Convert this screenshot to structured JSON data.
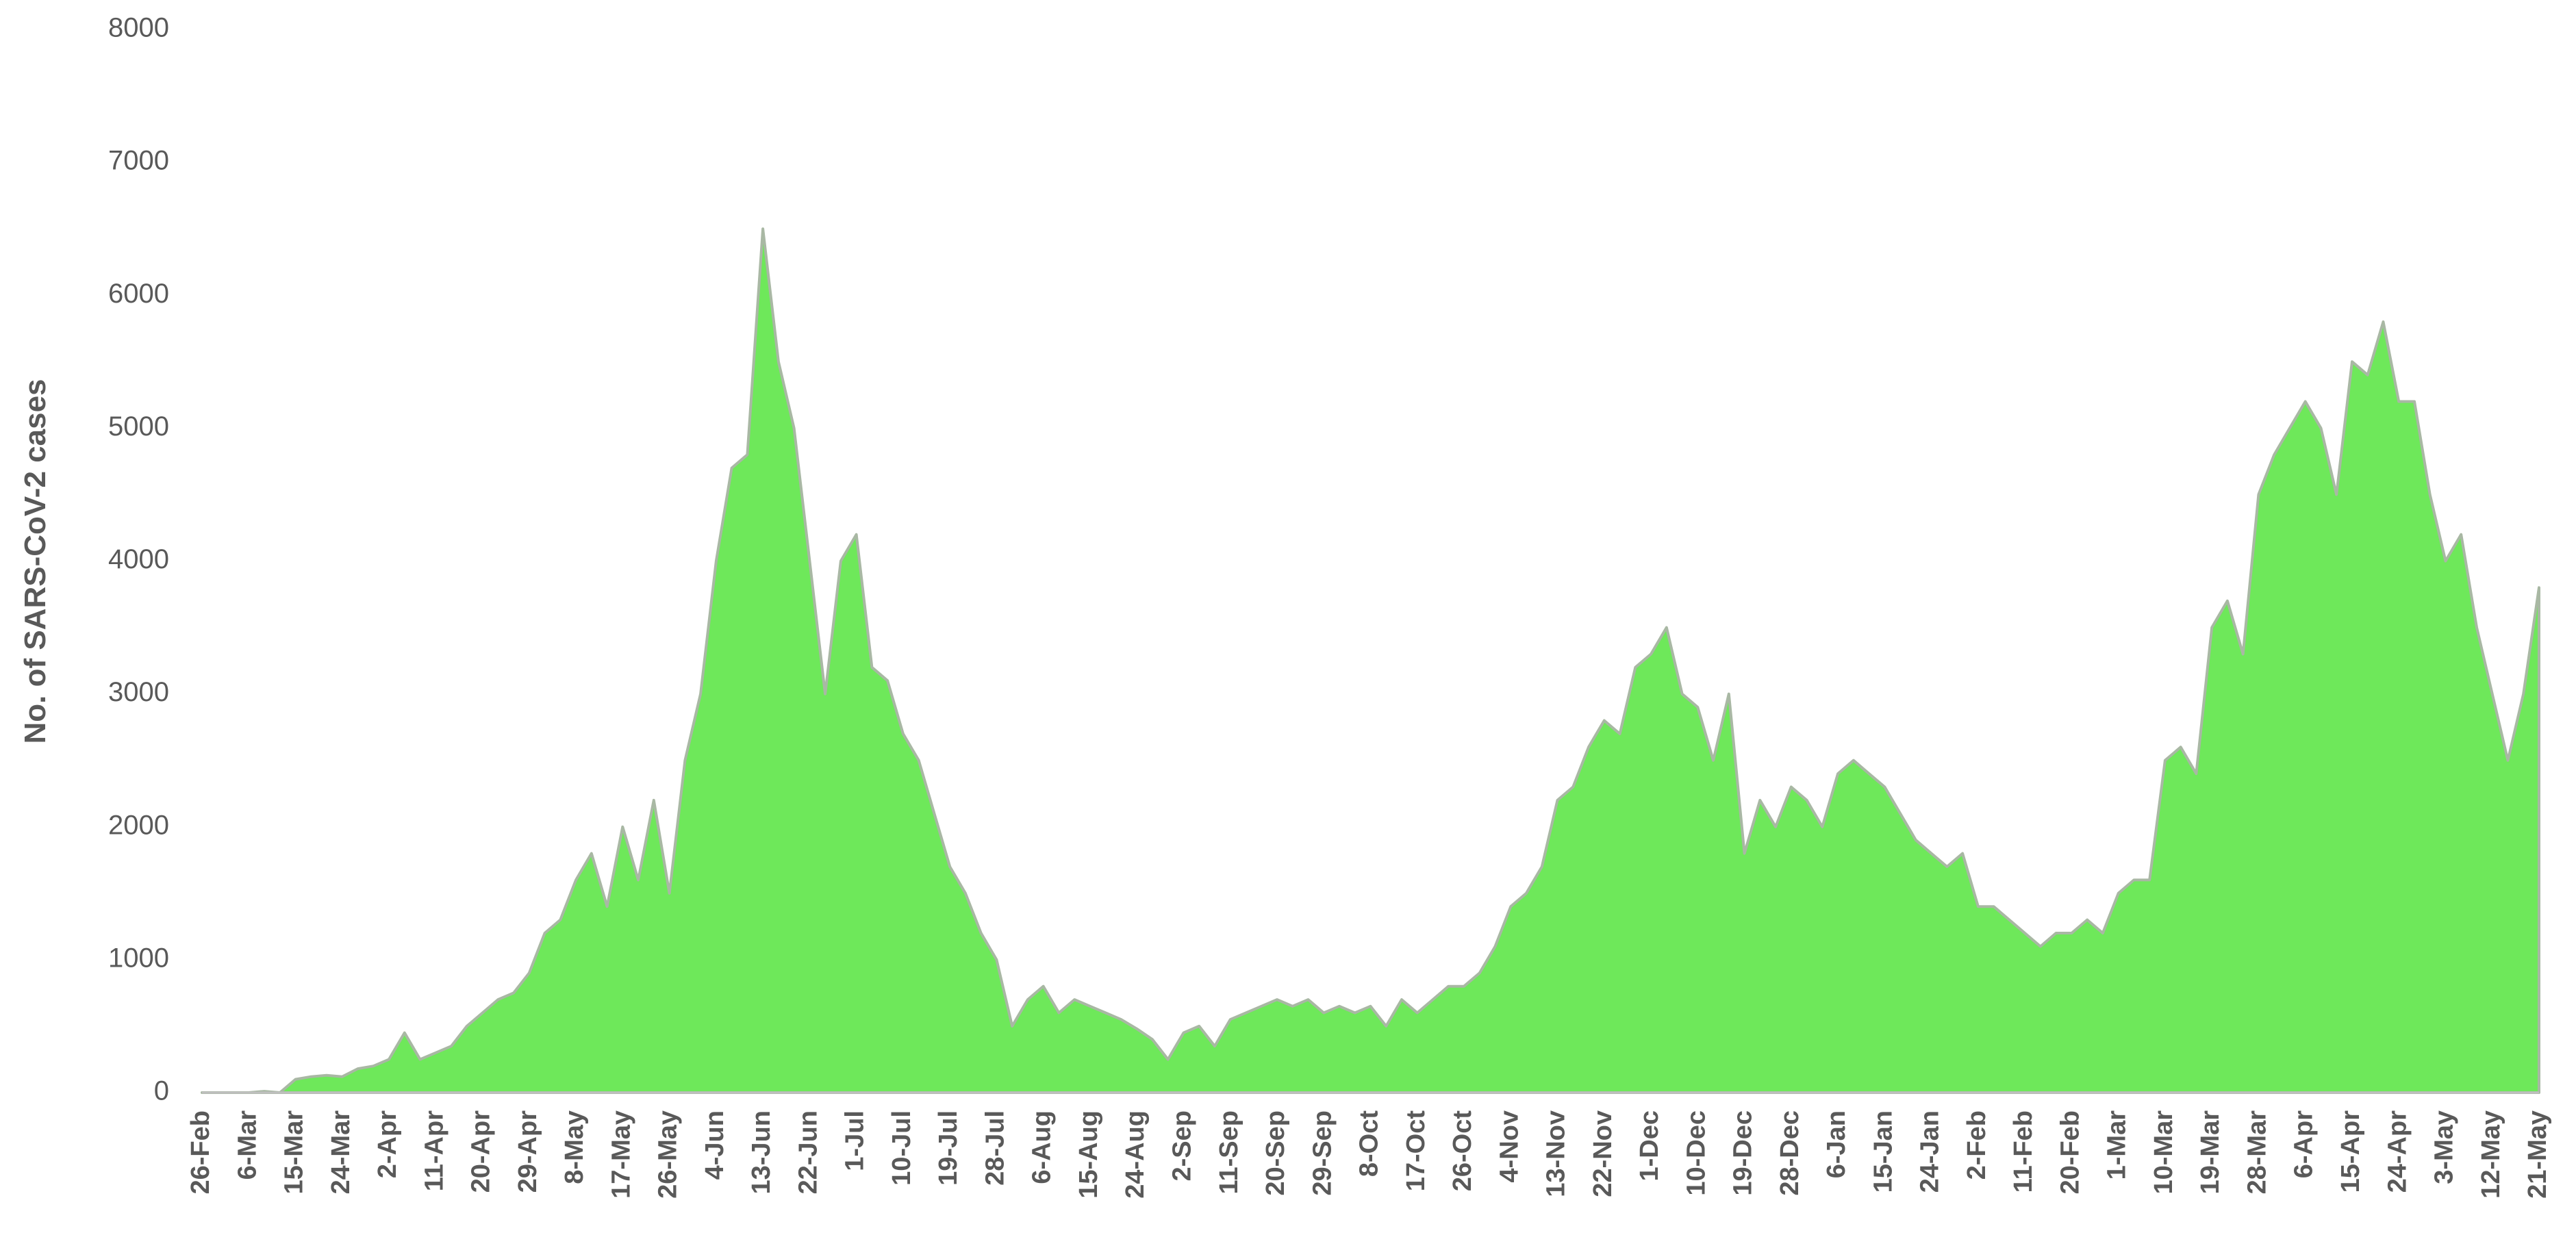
{
  "chart_data": {
    "type": "area",
    "y_label": "No. of SARS-CoV-2 cases",
    "categories": [
      "26-Feb",
      null,
      null,
      "6-Mar",
      null,
      null,
      "15-Mar",
      null,
      null,
      "24-Mar",
      null,
      null,
      "2-Apr",
      null,
      null,
      "11-Apr",
      null,
      null,
      "20-Apr",
      null,
      null,
      "29-Apr",
      null,
      null,
      "8-May",
      null,
      null,
      "17-May",
      null,
      null,
      "26-May",
      null,
      null,
      "4-Jun",
      null,
      null,
      "13-Jun",
      null,
      null,
      "22-Jun",
      null,
      null,
      "1-Jul",
      null,
      null,
      "10-Jul",
      null,
      null,
      "19-Jul",
      null,
      null,
      "28-Jul",
      null,
      null,
      "6-Aug",
      null,
      null,
      "15-Aug",
      null,
      null,
      "24-Aug",
      null,
      null,
      "2-Sep",
      null,
      null,
      "11-Sep",
      null,
      null,
      "20-Sep",
      null,
      null,
      "29-Sep",
      null,
      null,
      "8-Oct",
      null,
      null,
      "17-Oct",
      null,
      null,
      "26-Oct",
      null,
      null,
      "4-Nov",
      null,
      null,
      "13-Nov",
      null,
      null,
      "22-Nov",
      null,
      null,
      "1-Dec",
      null,
      null,
      "10-Dec",
      null,
      null,
      "19-Dec",
      null,
      null,
      "28-Dec",
      null,
      null,
      "6-Jan",
      null,
      null,
      "15-Jan",
      null,
      null,
      "24-Jan",
      null,
      null,
      "2-Feb",
      null,
      null,
      "11-Feb",
      null,
      null,
      "20-Feb",
      null,
      null,
      "1-Mar",
      null,
      null,
      "10-Mar",
      null,
      null,
      "19-Mar",
      null,
      null,
      "28-Mar",
      null,
      null,
      "6-Apr",
      null,
      null,
      "15-Apr",
      null,
      null,
      "24-Apr",
      null,
      null,
      "3-May",
      null,
      null,
      "12-May",
      null,
      null,
      "21-May"
    ],
    "values": [
      0,
      0,
      0,
      0,
      10,
      0,
      100,
      120,
      130,
      120,
      180,
      200,
      250,
      450,
      250,
      300,
      350,
      500,
      600,
      700,
      750,
      900,
      1200,
      1300,
      1600,
      1800,
      1400,
      2000,
      1600,
      2200,
      1500,
      2500,
      3000,
      4000,
      4700,
      4800,
      6500,
      5500,
      5000,
      4000,
      3000,
      4000,
      4200,
      3200,
      3100,
      2700,
      2500,
      2100,
      1700,
      1500,
      1200,
      1000,
      500,
      700,
      800,
      600,
      700,
      650,
      600,
      550,
      480,
      400,
      250,
      450,
      500,
      350,
      550,
      600,
      650,
      700,
      650,
      700,
      600,
      650,
      600,
      650,
      500,
      700,
      600,
      700,
      800,
      800,
      900,
      1100,
      1400,
      1500,
      1700,
      2200,
      2300,
      2600,
      2800,
      2700,
      3200,
      3300,
      3500,
      3000,
      2900,
      2500,
      3000,
      1800,
      2200,
      2000,
      2300,
      2200,
      2000,
      2400,
      2500,
      2400,
      2300,
      2100,
      1900,
      1800,
      1700,
      1800,
      1400,
      1400,
      1300,
      1200,
      1100,
      1200,
      1200,
      1300,
      1200,
      1500,
      1600,
      1600,
      2500,
      2600,
      2400,
      3500,
      3700,
      3300,
      4500,
      4800,
      5000,
      5200,
      5000,
      4500,
      5500,
      5400,
      5800,
      5200,
      5200,
      4500,
      4000,
      4200,
      3500,
      3000,
      2500,
      3000,
      3800
    ],
    "color": "#6ee85a",
    "ylim": [
      0,
      8000
    ],
    "yticks": [
      0,
      1000,
      2000,
      3000,
      4000,
      5000,
      6000,
      7000,
      8000
    ],
    "grid": false
  }
}
